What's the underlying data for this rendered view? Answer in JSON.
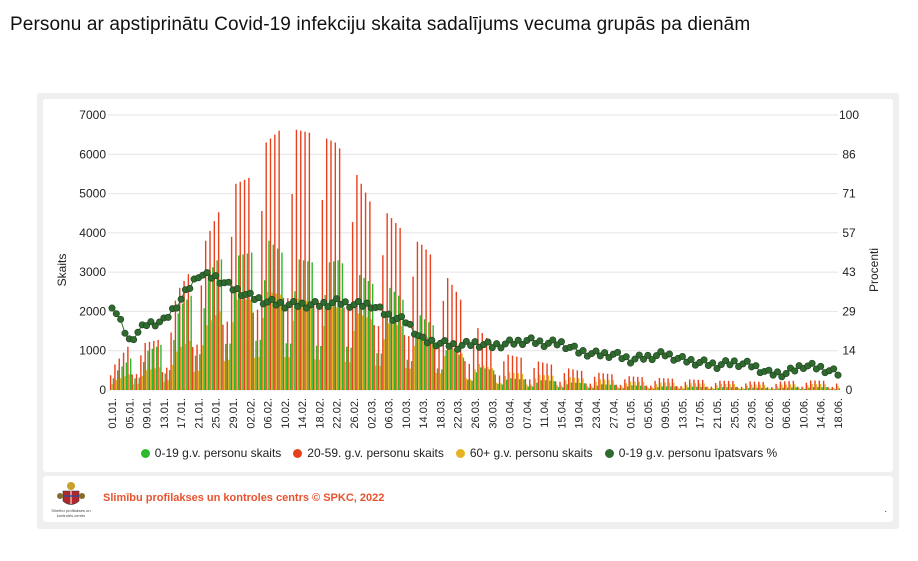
{
  "page": {
    "title": "Personu ar apstiprinātu Covid-19 infekciju skaita sadalījums vecuma grupās pa dienām"
  },
  "footer": {
    "source_text": "Slimību profilakses un kontroles centrs © SPKC, 2022",
    "logo_caption": "Slimību profilakses un kontroles centrs",
    "trailing_mark": "."
  },
  "colors": {
    "green": "#2db82d",
    "red": "#e8401c",
    "yellow": "#e6b422",
    "dark_green": "#2f6b2f",
    "grid": "#e4e4e4"
  },
  "chart_data": {
    "type": "bar",
    "ylabel": "Skaits",
    "y2label": "Procenti",
    "ylim": [
      0,
      7000
    ],
    "y2lim": [
      0,
      100
    ],
    "y_ticks": [
      "0",
      "1000",
      "2000",
      "3000",
      "4000",
      "5000",
      "6000",
      "7000"
    ],
    "y2_ticks": [
      "0",
      "14",
      "29",
      "43",
      "57",
      "71",
      "86",
      "100"
    ],
    "grid": true,
    "legend_position": "bottom",
    "x_tick_labels": [
      "01.01.",
      "05.01.",
      "09.01.",
      "13.01.",
      "17.01.",
      "21.01.",
      "25.01.",
      "29.01.",
      "02.02.",
      "06.02.",
      "10.02.",
      "14.02.",
      "18.02.",
      "22.02.",
      "26.02.",
      "02.03.",
      "06.03.",
      "10.03.",
      "14.03.",
      "18.03.",
      "22.03.",
      "26.03.",
      "30.03.",
      "03.04.",
      "07.04.",
      "11.04.",
      "15.04.",
      "19.04.",
      "23.04.",
      "27.04.",
      "01.05.",
      "05.05.",
      "09.05.",
      "13.05.",
      "17.05.",
      "21.05.",
      "25.05.",
      "29.05.",
      "02.06.",
      "06.06.",
      "10.06.",
      "14.06.",
      "18.06."
    ],
    "series": [
      {
        "name": "0-19 g.v. personu skaits",
        "kind": "bar",
        "color": "#2db82d",
        "values_every_4_days": [
          400,
          800,
          1000,
          1200,
          2200,
          2600,
          3300,
          3400,
          3500,
          3800,
          3400,
          3300,
          3200,
          3300,
          3000,
          2700,
          2600,
          2200,
          1800,
          1500,
          900,
          600,
          500,
          300,
          250,
          250,
          200,
          180,
          150,
          130,
          120,
          100,
          90,
          90,
          80,
          70,
          70,
          60,
          50,
          60,
          80,
          70,
          60
        ]
      },
      {
        "name": "20-59. g.v. personu skaits",
        "kind": "bar",
        "color": "#e8401c",
        "values_every_4_days": [
          500,
          1100,
          1200,
          1300,
          2600,
          3300,
          4300,
          5200,
          5400,
          6300,
          6700,
          6600,
          6500,
          6300,
          5700,
          4800,
          4500,
          4000,
          3700,
          3200,
          2500,
          1700,
          1200,
          900,
          800,
          700,
          600,
          500,
          450,
          400,
          350,
          320,
          300,
          280,
          260,
          240,
          230,
          220,
          200,
          220,
          250,
          240,
          220
        ]
      },
      {
        "name": "60+ g.v. personu skaits",
        "kind": "bar",
        "color": "#e6b422",
        "values_every_4_days": [
          200,
          400,
          500,
          600,
          1100,
          1400,
          1900,
          2300,
          2300,
          2500,
          2400,
          2300,
          2200,
          2100,
          2000,
          1800,
          1700,
          1600,
          1400,
          1200,
          1000,
          700,
          550,
          450,
          400,
          380,
          350,
          300,
          280,
          250,
          220,
          200,
          190,
          180,
          170,
          160,
          150,
          140,
          130,
          140,
          160,
          150,
          140
        ]
      },
      {
        "name": "0-19 g.v. personu īpatsvars %",
        "kind": "line",
        "axis": "right",
        "color": "#2f6b2f",
        "values_every_4_days": [
          31,
          18,
          24,
          25,
          33,
          42,
          41,
          37,
          34,
          32,
          31,
          31,
          31,
          32,
          31,
          31,
          27,
          25,
          18,
          17,
          16,
          17,
          16,
          17,
          18,
          17,
          17,
          14,
          13,
          13,
          11,
          12,
          13,
          11,
          10,
          9,
          10,
          9,
          6,
          6,
          9,
          8,
          6
        ]
      }
    ]
  }
}
